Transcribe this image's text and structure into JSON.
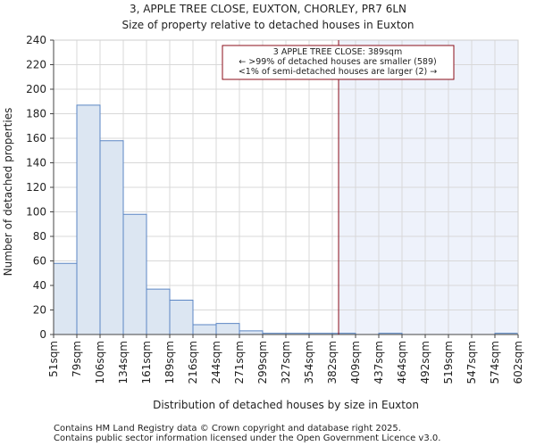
{
  "chart_data": {
    "type": "bar",
    "title": "3, APPLE TREE CLOSE, EUXTON, CHORLEY, PR7 6LN",
    "subtitle": "Size of property relative to detached houses in Euxton",
    "xlabel": "Distribution of detached houses by size in Euxton",
    "ylabel": "Number of detached properties",
    "ylim": [
      0,
      240
    ],
    "yticks": [
      0,
      20,
      40,
      60,
      80,
      100,
      120,
      140,
      160,
      180,
      200,
      220,
      240
    ],
    "bin_edges": [
      "51sqm",
      "79sqm",
      "106sqm",
      "134sqm",
      "161sqm",
      "189sqm",
      "216sqm",
      "244sqm",
      "271sqm",
      "299sqm",
      "327sqm",
      "354sqm",
      "382sqm",
      "409sqm",
      "437sqm",
      "464sqm",
      "492sqm",
      "519sqm",
      "547sqm",
      "574sqm",
      "602sqm"
    ],
    "values": [
      58,
      187,
      158,
      98,
      37,
      28,
      8,
      9,
      3,
      1,
      1,
      1,
      1,
      0,
      1,
      0,
      0,
      0,
      0,
      1
    ],
    "property_bin_position": 12.27,
    "highlight_from_bin_position": 12.27,
    "grid": true,
    "bar_color": "#dce6f2",
    "bar_edge_color": "#5b86c4",
    "marker_color": "#8b0d1a",
    "shade_color": "#eef2fb",
    "annotation": {
      "line1": "3 APPLE TREE CLOSE: 389sqm",
      "line2": "← >99% of detached houses are smaller (589)",
      "line3": "<1% of semi-detached houses are larger (2) →"
    }
  },
  "footer": {
    "line1": "Contains HM Land Registry data © Crown copyright and database right 2025.",
    "line2": "Contains public sector information licensed under the Open Government Licence v3.0."
  }
}
